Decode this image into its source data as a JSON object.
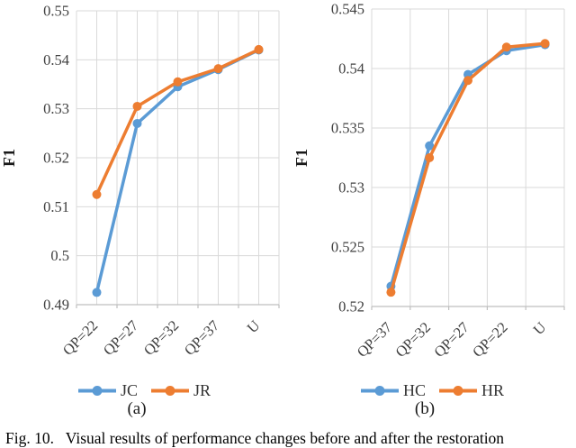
{
  "figure": {
    "caption": "Fig. 10.   Visual results of performance changes before and after the restoration",
    "subcaption_a": "(a)",
    "subcaption_b": "(b)"
  },
  "colors": {
    "series_blue": "#5B9BD5",
    "series_orange": "#ED7D31",
    "gridline": "#D9D9D9",
    "axis_line": "#BFBFBF",
    "tick_text": "#3F3F3F",
    "axis_title_text": "#1A1A1A"
  },
  "chart_data": [
    {
      "type": "line",
      "panel": "a",
      "title": "",
      "ylabel": "F1",
      "xlabel": "",
      "categories": [
        "QP=22",
        "QP=27",
        "QP=32",
        "QP=37",
        "U"
      ],
      "series": [
        {
          "name": "JC",
          "color": "#5B9BD5",
          "values": [
            0.4925,
            0.527,
            0.5345,
            0.538,
            0.542
          ]
        },
        {
          "name": "JR",
          "color": "#ED7D31",
          "values": [
            0.5125,
            0.5305,
            0.5355,
            0.5382,
            0.5421
          ]
        }
      ],
      "ylim": [
        0.49,
        0.55
      ],
      "ytick_step": 0.01,
      "ytick_labels": [
        "0.55",
        "0.54",
        "0.53",
        "0.52",
        "0.51",
        "0.5",
        "0.49"
      ],
      "grid": {
        "horizontal": true,
        "vertical": "half-category"
      },
      "legend_position": "bottom"
    },
    {
      "type": "line",
      "panel": "b",
      "title": "",
      "ylabel": "F1",
      "xlabel": "",
      "categories": [
        "QP=37",
        "QP=32",
        "QP=27",
        "QP=22",
        "U"
      ],
      "series": [
        {
          "name": "HC",
          "color": "#5B9BD5",
          "values": [
            0.5217,
            0.5335,
            0.5395,
            0.5415,
            0.542
          ]
        },
        {
          "name": "HR",
          "color": "#ED7D31",
          "values": [
            0.5212,
            0.5325,
            0.539,
            0.5418,
            0.5421
          ]
        }
      ],
      "ylim": [
        0.52,
        0.545
      ],
      "ytick_step": 0.005,
      "ytick_labels": [
        "0.545",
        "0.54",
        "0.535",
        "0.53",
        "0.525",
        "0.52"
      ],
      "grid": {
        "horizontal": true,
        "vertical": "category-boundary"
      },
      "legend_position": "bottom"
    }
  ]
}
